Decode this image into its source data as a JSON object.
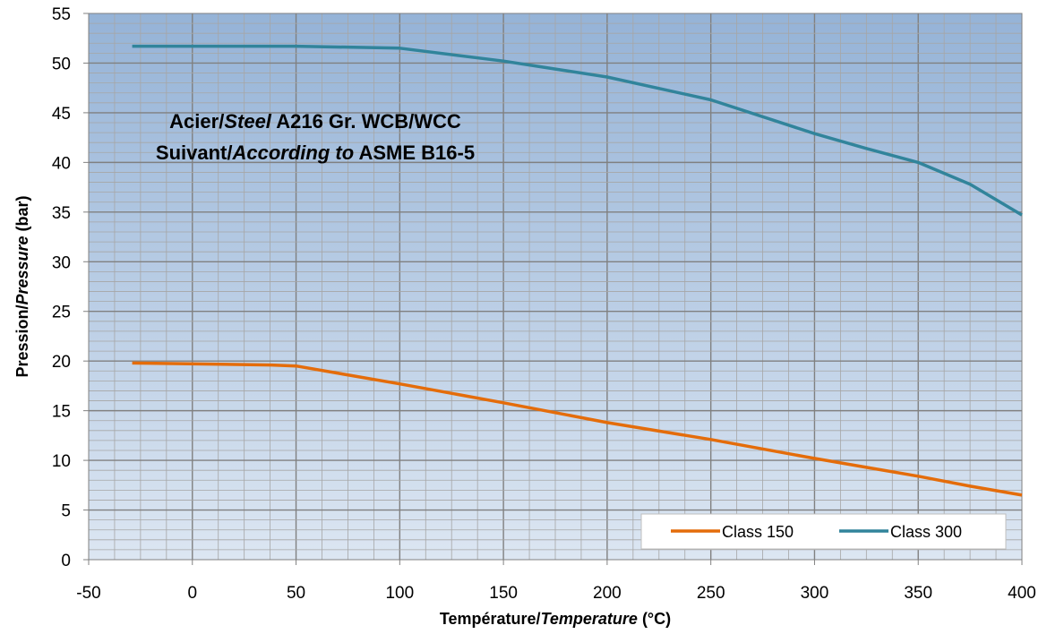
{
  "chart_data": {
    "type": "line",
    "title": "",
    "annotations": [
      {
        "parts": [
          {
            "text": "Acier/",
            "italic": false
          },
          {
            "text": "Steel",
            "italic": true
          },
          {
            "text": " A216 Gr. WCB/WCC",
            "italic": false
          }
        ]
      },
      {
        "parts": [
          {
            "text": "Suivant/",
            "italic": false
          },
          {
            "text": "According to",
            "italic": true
          },
          {
            "text": " ASME B16-5",
            "italic": false
          }
        ]
      }
    ],
    "xlabel_parts": [
      {
        "text": "Température/",
        "italic": false
      },
      {
        "text": "Temperature",
        "italic": true
      },
      {
        "text": " (°C)",
        "italic": false
      }
    ],
    "ylabel_parts": [
      {
        "text": "Pression/",
        "italic": false
      },
      {
        "text": "Pressure",
        "italic": true
      },
      {
        "text": " (bar)",
        "italic": false
      }
    ],
    "xlim": [
      -50,
      400
    ],
    "ylim": [
      0,
      55
    ],
    "xticks": [
      -50,
      0,
      50,
      100,
      150,
      200,
      250,
      300,
      350,
      400
    ],
    "yticks": [
      0,
      5,
      10,
      15,
      20,
      25,
      30,
      35,
      40,
      45,
      50,
      55
    ],
    "grid": true,
    "legend_position": "bottom-right",
    "series": [
      {
        "name": "Class 150",
        "color": "#E46C0A",
        "x": [
          -29,
          38,
          50,
          100,
          150,
          200,
          250,
          300,
          325,
          350,
          375,
          400
        ],
        "y": [
          19.8,
          19.6,
          19.5,
          17.7,
          15.8,
          13.8,
          12.1,
          10.2,
          9.3,
          8.4,
          7.4,
          6.5
        ]
      },
      {
        "name": "Class 300",
        "color": "#31849B",
        "x": [
          -29,
          38,
          50,
          100,
          150,
          200,
          250,
          300,
          325,
          350,
          375,
          400
        ],
        "y": [
          51.7,
          51.7,
          51.7,
          51.5,
          50.2,
          48.6,
          46.3,
          42.9,
          41.4,
          40.0,
          37.8,
          34.7
        ]
      }
    ]
  }
}
